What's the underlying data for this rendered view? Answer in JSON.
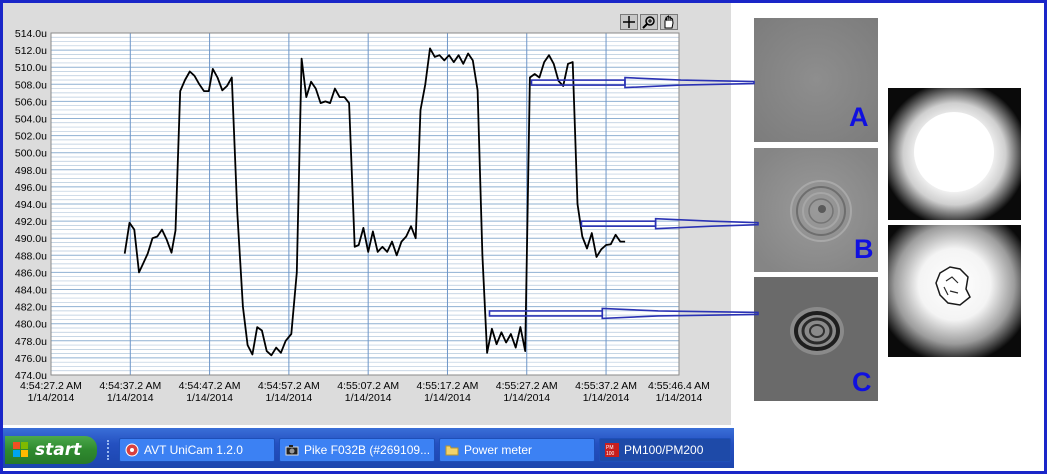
{
  "chart_data": {
    "type": "line",
    "ylim": [
      474.0,
      514.0
    ],
    "yticks": [
      "474.0u",
      "476.0u",
      "478.0u",
      "480.0u",
      "482.0u",
      "484.0u",
      "486.0u",
      "488.0u",
      "490.0u",
      "492.0u",
      "494.0u",
      "496.0u",
      "498.0u",
      "500.0u",
      "502.0u",
      "504.0u",
      "506.0u",
      "508.0u",
      "510.0u",
      "512.0u",
      "514.0u"
    ],
    "xlim": [
      0,
      79.2
    ],
    "xticks": [
      {
        "x": 0,
        "time": "4:54:27.2 AM",
        "date": "1/14/2014"
      },
      {
        "x": 10,
        "time": "4:54:37.2 AM",
        "date": "1/14/2014"
      },
      {
        "x": 20,
        "time": "4:54:47.2 AM",
        "date": "1/14/2014"
      },
      {
        "x": 30,
        "time": "4:54:57.2 AM",
        "date": "1/14/2014"
      },
      {
        "x": 40,
        "time": "4:55:07.2 AM",
        "date": "1/14/2014"
      },
      {
        "x": 50,
        "time": "4:55:17.2 AM",
        "date": "1/14/2014"
      },
      {
        "x": 60,
        "time": "4:55:27.2 AM",
        "date": "1/14/2014"
      },
      {
        "x": 70,
        "time": "4:55:37.2 AM",
        "date": "1/14/2014"
      },
      {
        "x": 79.2,
        "time": "4:55:46.4 AM",
        "date": "1/14/2014"
      }
    ],
    "grid": true,
    "series": [
      {
        "color": "#000000",
        "points": [
          [
            9.3,
            488.2
          ],
          [
            9.9,
            491.8
          ],
          [
            10.5,
            491.0
          ],
          [
            11.1,
            486.0
          ],
          [
            11.6,
            487.0
          ],
          [
            12.2,
            488.2
          ],
          [
            12.8,
            490.0
          ],
          [
            13.4,
            490.2
          ],
          [
            14.0,
            491.0
          ],
          [
            14.6,
            489.8
          ],
          [
            15.2,
            488.3
          ],
          [
            15.7,
            490.9
          ],
          [
            16.3,
            507.2
          ],
          [
            16.9,
            508.5
          ],
          [
            17.5,
            509.5
          ],
          [
            18.1,
            509.0
          ],
          [
            18.7,
            508.0
          ],
          [
            19.3,
            507.2
          ],
          [
            19.9,
            507.2
          ],
          [
            20.4,
            509.8
          ],
          [
            21.0,
            508.8
          ],
          [
            21.6,
            507.3
          ],
          [
            22.2,
            507.8
          ],
          [
            22.8,
            508.8
          ],
          [
            23.5,
            493.0
          ],
          [
            24.2,
            482.0
          ],
          [
            24.8,
            477.5
          ],
          [
            25.4,
            476.4
          ],
          [
            26.0,
            479.6
          ],
          [
            26.6,
            479.2
          ],
          [
            27.2,
            476.8
          ],
          [
            27.8,
            476.3
          ],
          [
            28.4,
            477.2
          ],
          [
            29.0,
            476.6
          ],
          [
            29.6,
            478.0
          ],
          [
            30.3,
            478.8
          ],
          [
            31.0,
            486.0
          ],
          [
            31.6,
            511.0
          ],
          [
            32.2,
            506.5
          ],
          [
            32.8,
            508.3
          ],
          [
            33.4,
            507.5
          ],
          [
            34.0,
            505.8
          ],
          [
            34.6,
            506.0
          ],
          [
            35.2,
            505.8
          ],
          [
            35.8,
            507.5
          ],
          [
            36.4,
            506.5
          ],
          [
            37.0,
            506.5
          ],
          [
            37.6,
            505.8
          ],
          [
            38.3,
            489.0
          ],
          [
            38.8,
            489.2
          ],
          [
            39.4,
            491.2
          ],
          [
            40.0,
            488.4
          ],
          [
            40.6,
            490.8
          ],
          [
            41.2,
            488.4
          ],
          [
            41.8,
            489.0
          ],
          [
            42.4,
            488.4
          ],
          [
            43.0,
            489.6
          ],
          [
            43.6,
            488.0
          ],
          [
            44.2,
            489.6
          ],
          [
            44.8,
            490.2
          ],
          [
            45.4,
            491.4
          ],
          [
            46.0,
            490.0
          ],
          [
            46.6,
            505.0
          ],
          [
            47.2,
            508.0
          ],
          [
            47.8,
            512.2
          ],
          [
            48.4,
            511.2
          ],
          [
            49.0,
            511.4
          ],
          [
            49.6,
            510.8
          ],
          [
            50.2,
            511.4
          ],
          [
            50.8,
            510.6
          ],
          [
            51.4,
            511.4
          ],
          [
            52.0,
            510.4
          ],
          [
            52.6,
            511.6
          ],
          [
            53.2,
            510.8
          ],
          [
            53.8,
            507.3
          ],
          [
            54.4,
            488.0
          ],
          [
            55.0,
            476.6
          ],
          [
            55.6,
            479.4
          ],
          [
            56.2,
            477.6
          ],
          [
            56.8,
            479.0
          ],
          [
            57.4,
            477.8
          ],
          [
            58.0,
            478.8
          ],
          [
            58.6,
            477.2
          ],
          [
            59.2,
            479.6
          ],
          [
            59.8,
            476.8
          ],
          [
            60.4,
            508.8
          ],
          [
            61.0,
            509.2
          ],
          [
            61.6,
            508.8
          ],
          [
            62.2,
            510.6
          ],
          [
            62.8,
            511.4
          ],
          [
            63.4,
            510.4
          ],
          [
            64.0,
            508.4
          ],
          [
            64.6,
            507.8
          ],
          [
            65.2,
            510.4
          ],
          [
            65.8,
            510.6
          ],
          [
            66.4,
            494.0
          ],
          [
            67.0,
            490.2
          ],
          [
            67.6,
            488.8
          ],
          [
            68.2,
            490.6
          ],
          [
            68.8,
            487.8
          ],
          [
            69.4,
            488.7
          ],
          [
            70.0,
            489.2
          ],
          [
            70.6,
            489.3
          ],
          [
            71.2,
            490.4
          ],
          [
            71.8,
            489.6
          ],
          [
            72.4,
            489.6
          ]
        ]
      }
    ],
    "annotations": [
      {
        "target": "A",
        "from": [
          60.6,
          508.2
        ]
      },
      {
        "target": "B",
        "from": [
          66.9,
          491.7
        ]
      },
      {
        "target": "C",
        "from": [
          55.3,
          481.2
        ]
      }
    ]
  },
  "toolbar": {
    "icons": [
      "cursor-crosshair-icon",
      "zoom-icon",
      "pan-hand-icon"
    ]
  },
  "panels": {
    "labels": [
      "A",
      "B",
      "C"
    ],
    "label_color": "#1010e0",
    "arrow_color": "#2a32b4"
  },
  "taskbar": {
    "start_label": "start",
    "buttons": [
      {
        "label": "AVT UniCam 1.2.0",
        "icon": "unicam-icon"
      },
      {
        "label": "Pike F032B (#269109...",
        "icon": "camera-icon"
      },
      {
        "label": "Power meter",
        "icon": "folder-icon"
      },
      {
        "label": "PM100/PM200",
        "icon": "pm100-icon"
      }
    ]
  },
  "colors": {
    "frame": "#1a26c8",
    "plot_background": "#ffffff",
    "panel_background": "#dcdcdc",
    "grid_horizontal": "#b4c8dc",
    "grid_vertical": "#6e96c8",
    "taskbar": "#2450c0",
    "start_button": "#2f8a2f"
  }
}
